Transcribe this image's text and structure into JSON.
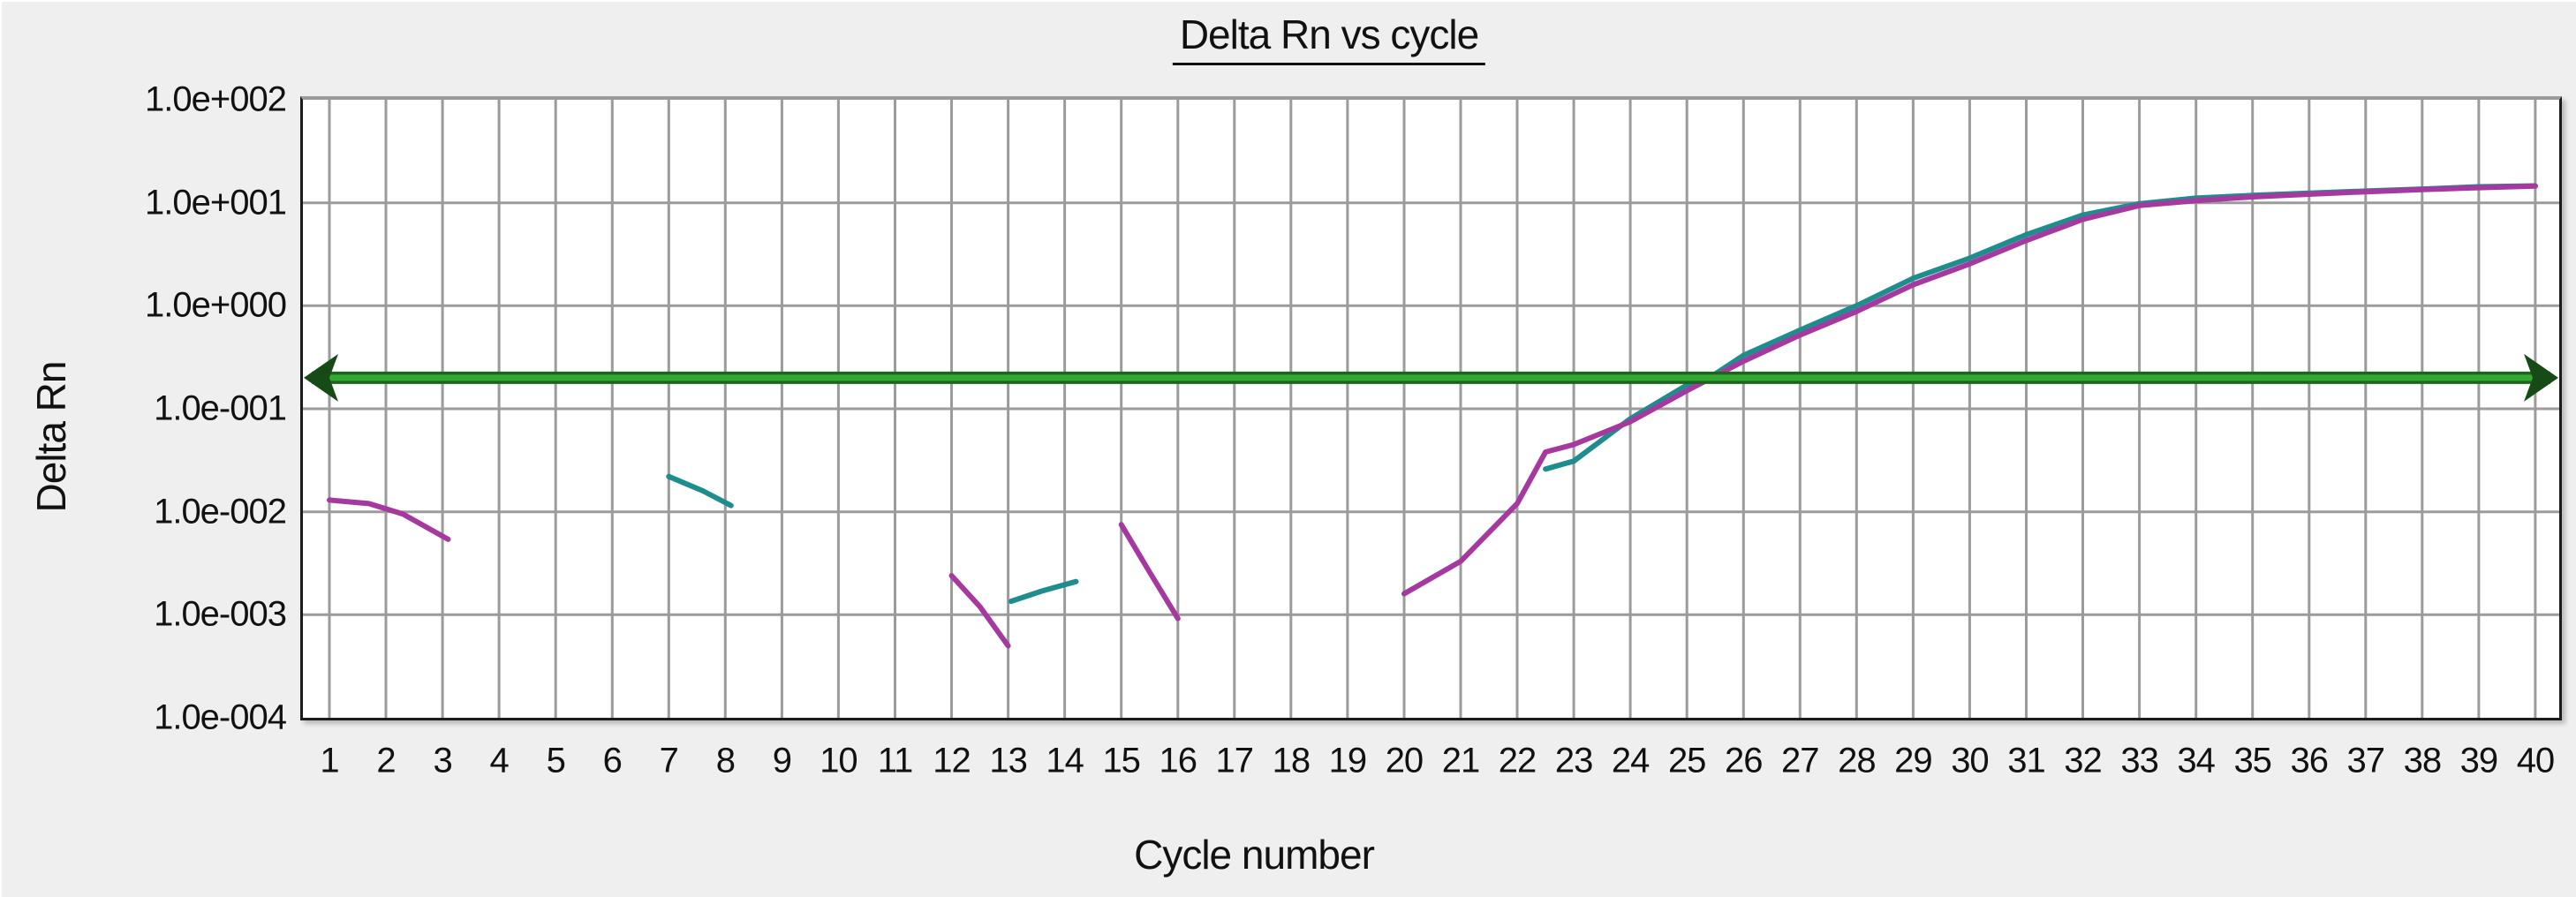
{
  "chart_data": {
    "type": "line",
    "title": "Delta Rn vs cycle",
    "xlabel": "Cycle number",
    "ylabel": "Delta Rn",
    "grid": true,
    "legend_position": "none",
    "x_axis": {
      "label": "Cycle number",
      "min": 1,
      "max": 40,
      "tick_labels": [
        "1",
        "2",
        "3",
        "4",
        "5",
        "6",
        "7",
        "8",
        "9",
        "10",
        "11",
        "12",
        "13",
        "14",
        "15",
        "16",
        "17",
        "18",
        "19",
        "20",
        "21",
        "22",
        "23",
        "24",
        "25",
        "26",
        "27",
        "28",
        "29",
        "30",
        "31",
        "32",
        "33",
        "34",
        "35",
        "36",
        "37",
        "38",
        "39",
        "40"
      ]
    },
    "y_axis": {
      "label": "Delta Rn",
      "scale": "log",
      "min": 0.0001,
      "max": 100,
      "tick_labels": [
        "1.0e+002",
        "1.0e+001",
        "1.0e+000",
        "1.0e-001",
        "1.0e-002",
        "1.0e-003",
        "1.0e-004"
      ],
      "tick_exponents": [
        2,
        1,
        0,
        -1,
        -2,
        -3,
        -4
      ]
    },
    "threshold": {
      "name": "threshold-line",
      "value": 0.2,
      "style": "horizontal double-arrow line",
      "color_outer": "#1d651d",
      "color_inner": "#33a933",
      "arrow_color": "#164a16"
    },
    "colors": {
      "plot_background": "#ffffff",
      "page_background": "#efefef",
      "gridline": "#9b9b9b",
      "border": "#1b1b1b",
      "teal_trace": "#1f8d8d",
      "magenta_trace": "#a6399f"
    },
    "series": [
      {
        "name": "teal-trace",
        "color": "#1f8d8d",
        "segments": [
          [
            [
              7,
              0.022
            ],
            [
              7.6,
              0.016
            ],
            [
              8.1,
              0.0115
            ]
          ],
          [
            [
              13.05,
              0.00135
            ],
            [
              13.6,
              0.0017
            ],
            [
              14.2,
              0.0021
            ]
          ],
          [
            [
              22.5,
              0.026
            ],
            [
              23,
              0.031
            ],
            [
              24,
              0.08
            ],
            [
              25,
              0.17
            ],
            [
              25.4,
              0.2
            ],
            [
              26,
              0.33
            ],
            [
              27,
              0.58
            ],
            [
              28,
              1.0
            ],
            [
              29,
              1.85
            ],
            [
              30,
              2.9
            ],
            [
              31,
              4.9
            ],
            [
              32,
              7.6
            ],
            [
              33,
              9.8
            ],
            [
              34,
              11.1
            ],
            [
              35,
              11.8
            ],
            [
              36,
              12.4
            ],
            [
              37,
              13.0
            ],
            [
              38,
              13.6
            ],
            [
              39,
              14.3
            ],
            [
              40,
              14.6
            ]
          ]
        ]
      },
      {
        "name": "magenta-trace",
        "color": "#a6399f",
        "segments": [
          [
            [
              1,
              0.013
            ],
            [
              1.7,
              0.012
            ],
            [
              2.3,
              0.0095
            ],
            [
              3.1,
              0.0054
            ]
          ],
          [
            [
              12,
              0.0024
            ],
            [
              12.5,
              0.0012
            ],
            [
              13,
              0.0005
            ]
          ],
          [
            [
              15,
              0.0075
            ],
            [
              15.5,
              0.0026
            ],
            [
              16,
              0.00092
            ]
          ],
          [
            [
              20,
              0.0016
            ],
            [
              21,
              0.0033
            ],
            [
              22,
              0.012
            ],
            [
              22.5,
              0.038
            ],
            [
              23,
              0.045
            ],
            [
              24,
              0.075
            ],
            [
              25,
              0.15
            ],
            [
              26,
              0.29
            ],
            [
              27,
              0.52
            ],
            [
              28,
              0.88
            ],
            [
              29,
              1.6
            ],
            [
              30,
              2.55
            ],
            [
              31,
              4.3
            ],
            [
              32,
              6.9
            ],
            [
              33,
              9.4
            ],
            [
              34,
              10.5
            ],
            [
              35,
              11.4
            ],
            [
              36,
              12.1
            ],
            [
              37,
              12.8
            ],
            [
              38,
              13.4
            ],
            [
              39,
              14.0
            ],
            [
              40,
              14.5
            ]
          ]
        ]
      }
    ]
  }
}
